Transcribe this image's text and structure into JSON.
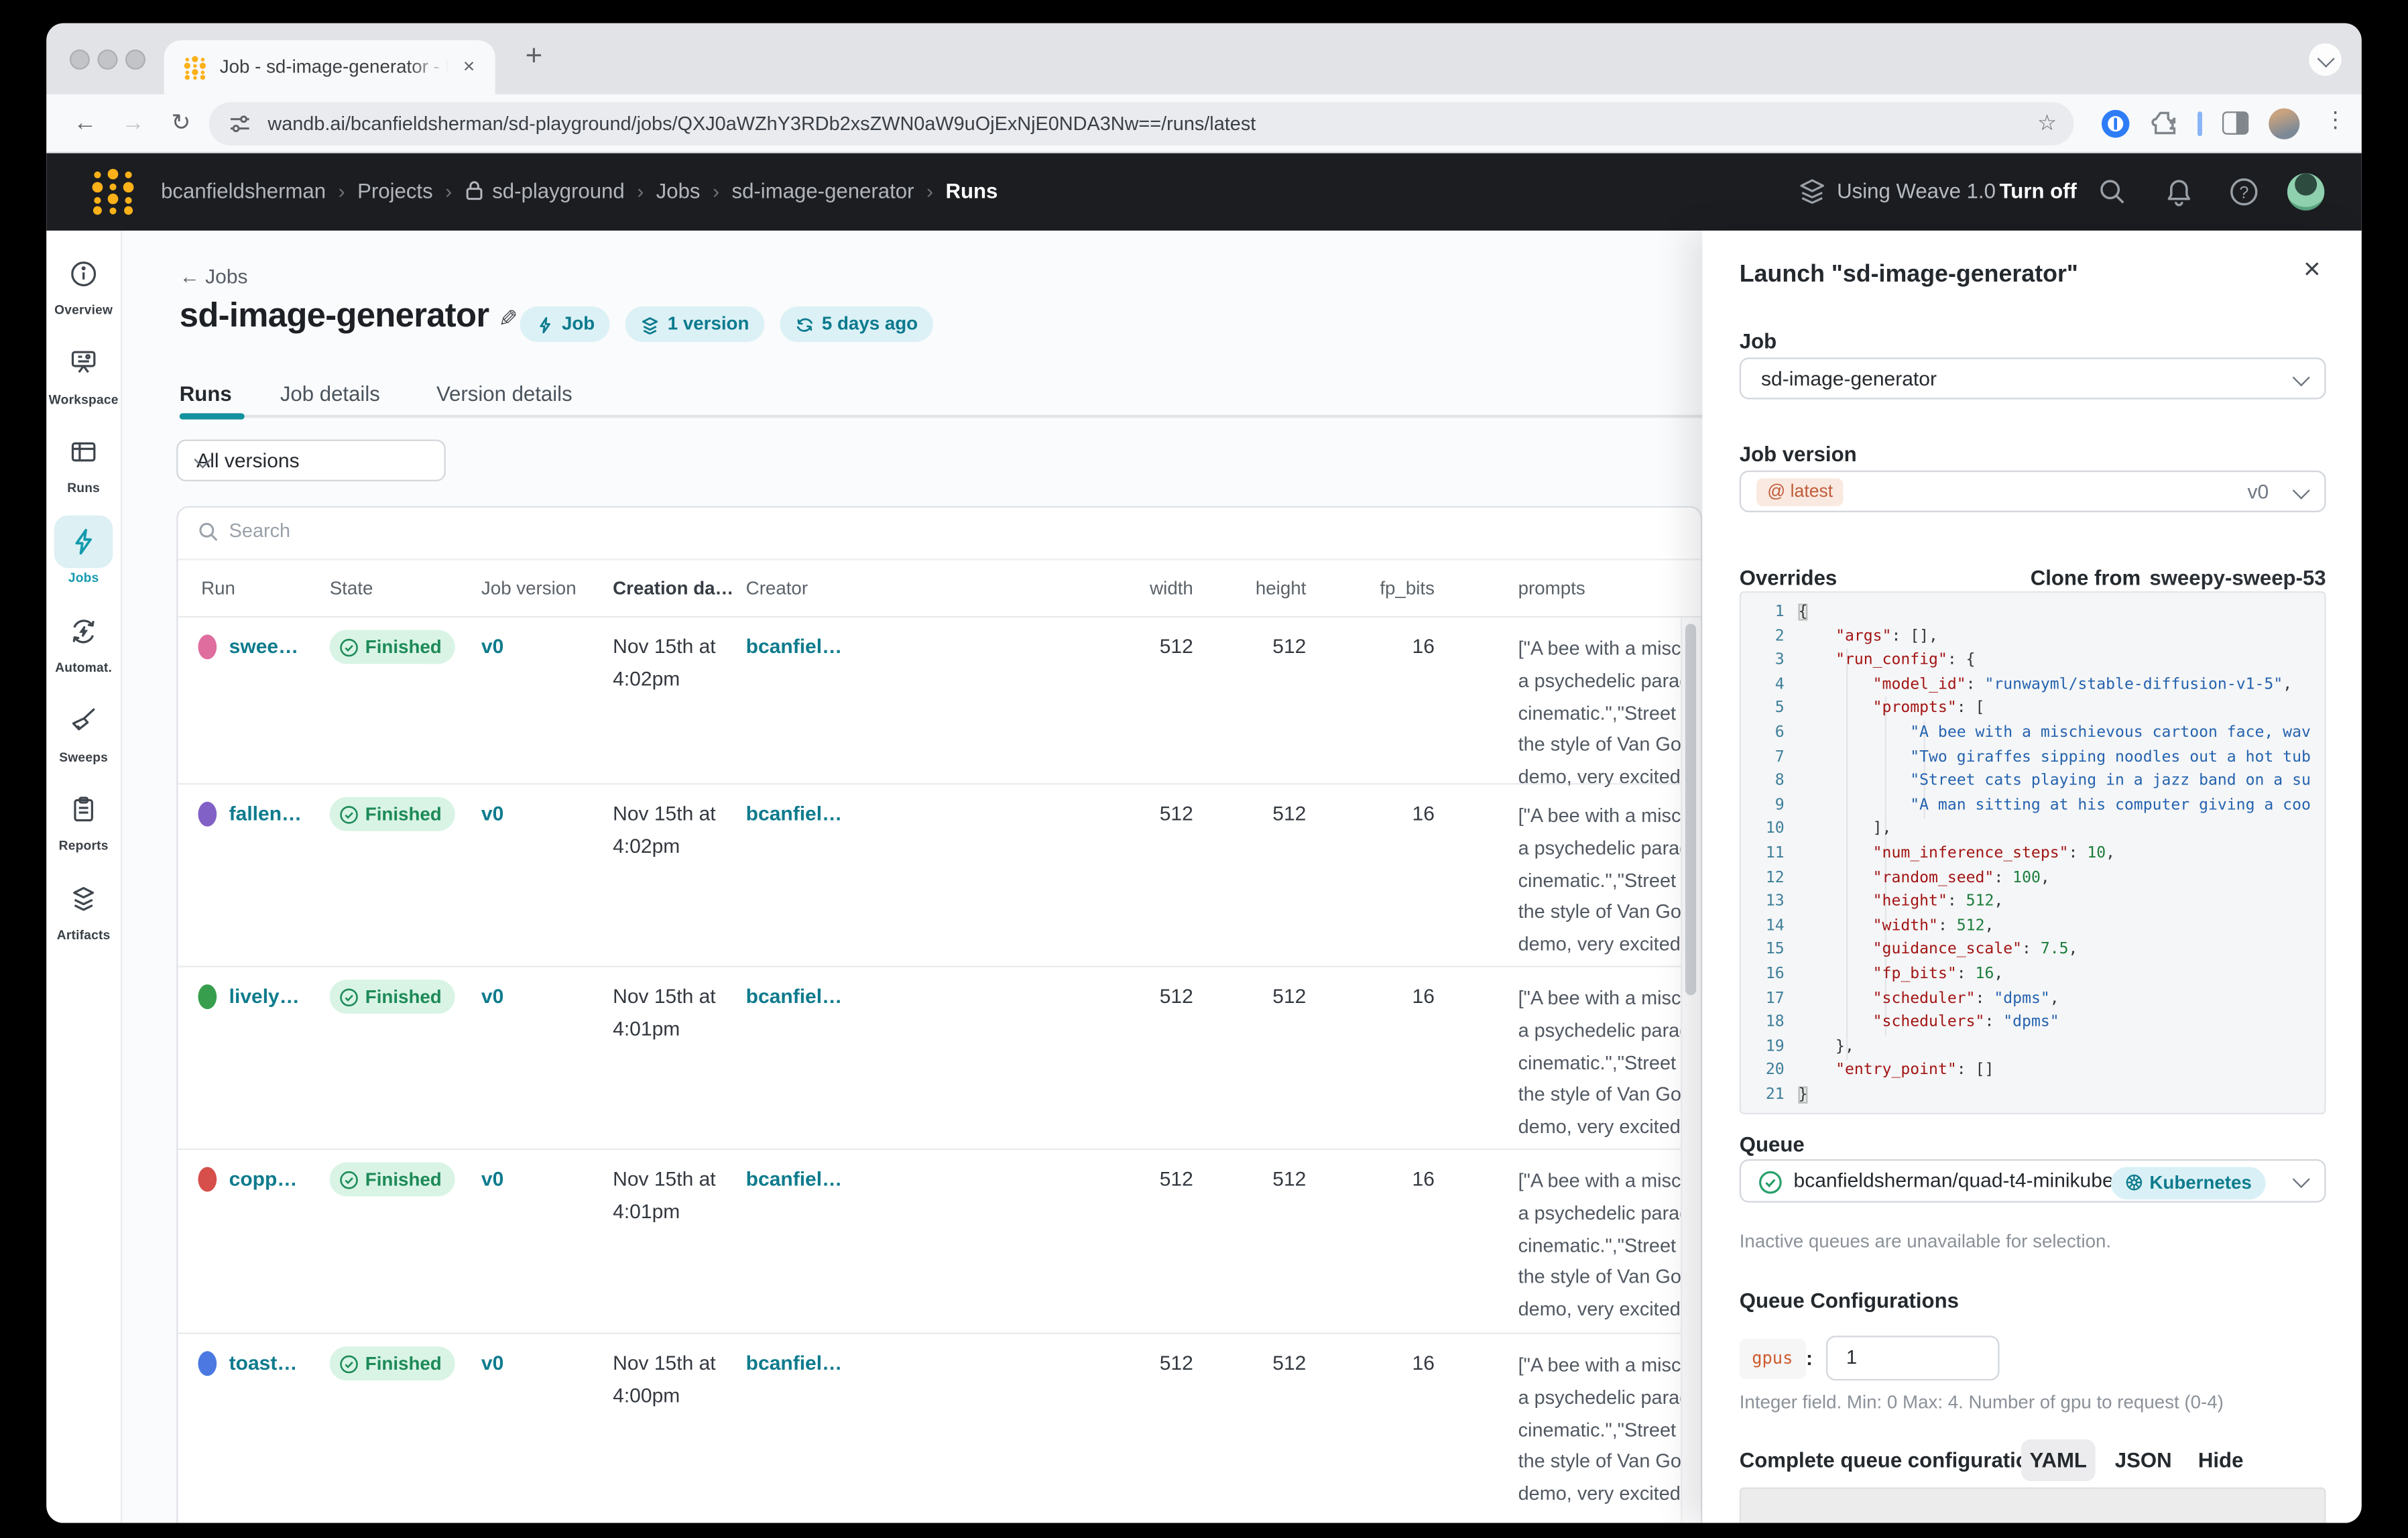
{
  "browser": {
    "tab_title": "Job - sd-image-generator - R",
    "close_tab": "×",
    "new_tab": "+",
    "url": "wandb.ai/bcanfieldsherman/sd-playground/jobs/QXJ0aWZhY3RDb2xsZWN0aW9uOjExNjE0NDA3Nw==/runs/latest",
    "back": "←",
    "forward": "→",
    "reload": "↻",
    "bookmark_star": "☆",
    "menu_dots": "⋮"
  },
  "appnav": {
    "separator": "›",
    "breadcrumbs": [
      {
        "label": "bcanfieldsherman"
      },
      {
        "label": "Projects"
      },
      {
        "label": "sd-playground",
        "lock": true
      },
      {
        "label": "Jobs"
      },
      {
        "label": "sd-image-generator"
      },
      {
        "label": "Runs",
        "current": true
      }
    ],
    "weave_status": "Using Weave 1.0",
    "turn_off": "Turn off"
  },
  "sidebar": {
    "items": [
      {
        "label": "Overview",
        "icon": "info-icon"
      },
      {
        "label": "Workspace",
        "icon": "workspace-icon"
      },
      {
        "label": "Runs",
        "icon": "runs-table-icon"
      },
      {
        "label": "Jobs",
        "icon": "jobs-bolt-icon",
        "active": true
      },
      {
        "label": "Automat.",
        "icon": "automations-icon"
      },
      {
        "label": "Sweeps",
        "icon": "sweeps-broom-icon"
      },
      {
        "label": "Reports",
        "icon": "reports-clipboard-icon"
      },
      {
        "label": "Artifacts",
        "icon": "artifacts-layers-icon"
      }
    ]
  },
  "page": {
    "back_arrow": "←",
    "back_link": "Jobs",
    "title": "sd-image-generator",
    "edit_icon": "✎",
    "badges": [
      {
        "icon": "bolt-icon",
        "label": "Job"
      },
      {
        "icon": "layers-icon",
        "label": "1 version"
      },
      {
        "icon": "cycle-icon",
        "label": "5 days ago"
      }
    ],
    "tabs": [
      {
        "label": "Runs",
        "active": true
      },
      {
        "label": "Job details"
      },
      {
        "label": "Version details"
      }
    ],
    "version_filter": "All versions",
    "search_placeholder": "Search"
  },
  "table": {
    "headers": [
      "Run",
      "State",
      "Job version",
      "Creation da…",
      "Creator",
      "width",
      "height",
      "fp_bits",
      "prompts"
    ],
    "prompt_lines": [
      "[\"A bee with a misc",
      "a psychedelic parad",
      "cinematic.\",\"Street",
      "the style of Van Gog",
      "demo, very excited"
    ],
    "rows": [
      {
        "name": "swee…",
        "dot_color": "#df6d9e",
        "state": "Finished",
        "version": "v0",
        "date_line1": "Nov 15th at",
        "date_line2": "4:02pm",
        "creator": "bcanfiel…",
        "width": "512",
        "height": "512",
        "fp_bits": "16"
      },
      {
        "name": "fallen…",
        "dot_color": "#8161c6",
        "state": "Finished",
        "version": "v0",
        "date_line1": "Nov 15th at",
        "date_line2": "4:02pm",
        "creator": "bcanfiel…",
        "width": "512",
        "height": "512",
        "fp_bits": "16"
      },
      {
        "name": "lively…",
        "dot_color": "#379e4d",
        "state": "Finished",
        "version": "v0",
        "date_line1": "Nov 15th at",
        "date_line2": "4:01pm",
        "creator": "bcanfiel…",
        "width": "512",
        "height": "512",
        "fp_bits": "16"
      },
      {
        "name": "copp…",
        "dot_color": "#d64f4b",
        "state": "Finished",
        "version": "v0",
        "date_line1": "Nov 15th at",
        "date_line2": "4:01pm",
        "creator": "bcanfiel…",
        "width": "512",
        "height": "512",
        "fp_bits": "16"
      },
      {
        "name": "toast…",
        "dot_color": "#4b79e1",
        "state": "Finished",
        "version": "v0",
        "date_line1": "Nov 15th at",
        "date_line2": "4:00pm",
        "creator": "bcanfiel…",
        "width": "512",
        "height": "512",
        "fp_bits": "16"
      }
    ]
  },
  "panel": {
    "title": "Launch \"sd-image-generator\"",
    "close": "×",
    "job_label": "Job",
    "job_value": "sd-image-generator",
    "version_label": "Job version",
    "version_badge_icon": "@",
    "version_badge": "latest",
    "version_value": "v0",
    "overrides_label": "Overrides",
    "clone_label": "Clone from",
    "clone_value": "sweepy-sweep-53",
    "code_lines": [
      [
        [
          "b",
          "{"
        ]
      ],
      [
        [
          "p",
          "    "
        ],
        [
          "k",
          "\"args\""
        ],
        [
          "p",
          ": [],"
        ]
      ],
      [
        [
          "p",
          "    "
        ],
        [
          "k",
          "\"run_config\""
        ],
        [
          "p",
          ": {"
        ]
      ],
      [
        [
          "p",
          "        "
        ],
        [
          "k",
          "\"model_id\""
        ],
        [
          "p",
          ": "
        ],
        [
          "s",
          "\"runwayml/stable-diffusion-v1-5\""
        ],
        [
          "p",
          ","
        ]
      ],
      [
        [
          "p",
          "        "
        ],
        [
          "k",
          "\"prompts\""
        ],
        [
          "p",
          ": ["
        ]
      ],
      [
        [
          "p",
          "            "
        ],
        [
          "s",
          "\"A bee with a mischievous cartoon face, wav"
        ]
      ],
      [
        [
          "p",
          "            "
        ],
        [
          "s",
          "\"Two giraffes sipping noodles out a hot tub"
        ]
      ],
      [
        [
          "p",
          "            "
        ],
        [
          "s",
          "\"Street cats playing in a jazz band on a su"
        ]
      ],
      [
        [
          "p",
          "            "
        ],
        [
          "s",
          "\"A man sitting at his computer giving a coo"
        ]
      ],
      [
        [
          "p",
          "        ],"
        ]
      ],
      [
        [
          "p",
          "        "
        ],
        [
          "k",
          "\"num_inference_steps\""
        ],
        [
          "p",
          ": "
        ],
        [
          "n",
          "10"
        ],
        [
          "p",
          ","
        ]
      ],
      [
        [
          "p",
          "        "
        ],
        [
          "k",
          "\"random_seed\""
        ],
        [
          "p",
          ": "
        ],
        [
          "n",
          "100"
        ],
        [
          "p",
          ","
        ]
      ],
      [
        [
          "p",
          "        "
        ],
        [
          "k",
          "\"height\""
        ],
        [
          "p",
          ": "
        ],
        [
          "n",
          "512"
        ],
        [
          "p",
          ","
        ]
      ],
      [
        [
          "p",
          "        "
        ],
        [
          "k",
          "\"width\""
        ],
        [
          "p",
          ": "
        ],
        [
          "n",
          "512"
        ],
        [
          "p",
          ","
        ]
      ],
      [
        [
          "p",
          "        "
        ],
        [
          "k",
          "\"guidance_scale\""
        ],
        [
          "p",
          ": "
        ],
        [
          "n",
          "7.5"
        ],
        [
          "p",
          ","
        ]
      ],
      [
        [
          "p",
          "        "
        ],
        [
          "k",
          "\"fp_bits\""
        ],
        [
          "p",
          ": "
        ],
        [
          "n",
          "16"
        ],
        [
          "p",
          ","
        ]
      ],
      [
        [
          "p",
          "        "
        ],
        [
          "k",
          "\"scheduler\""
        ],
        [
          "p",
          ": "
        ],
        [
          "s",
          "\"dpms\""
        ],
        [
          "p",
          ","
        ]
      ],
      [
        [
          "p",
          "        "
        ],
        [
          "k",
          "\"schedulers\""
        ],
        [
          "p",
          ": "
        ],
        [
          "s",
          "\"dpms\""
        ]
      ],
      [
        [
          "p",
          "    },"
        ]
      ],
      [
        [
          "p",
          "    "
        ],
        [
          "k",
          "\"entry_point\""
        ],
        [
          "p",
          ": []"
        ]
      ],
      [
        [
          "b",
          "}"
        ]
      ]
    ],
    "queue_label": "Queue",
    "queue_value": "bcanfieldsherman/quad-t4-minikube",
    "queue_badge": "Kubernetes",
    "queue_helper": "Inactive queues are unavailable for selection.",
    "config_label": "Queue Configurations",
    "gpus_key": "gpus",
    "gpus_colon": ":",
    "gpus_value": "1",
    "gpus_helper": "Integer field. Min: 0 Max: 4. Number of gpu to request (0-4)",
    "footer_label": "Complete queue configurations",
    "format_yaml": "YAML",
    "format_json": "JSON",
    "format_hide": "Hide"
  },
  "colors": {
    "accent_teal": "#0e7b8d",
    "tab_underline": "#12919e",
    "badge_bg": "#dbf1f6",
    "finished_bg": "#d9f4e5",
    "finished_text": "#1d8a58",
    "nav_dark": "#1b1d21",
    "logo_yellow": "#fcb119",
    "code_key": "#a31515",
    "code_string": "#2563af",
    "code_number": "#1c7d3c",
    "latest_badge_text": "#c05c3a",
    "gpus_key_color": "#cf5b2e"
  }
}
